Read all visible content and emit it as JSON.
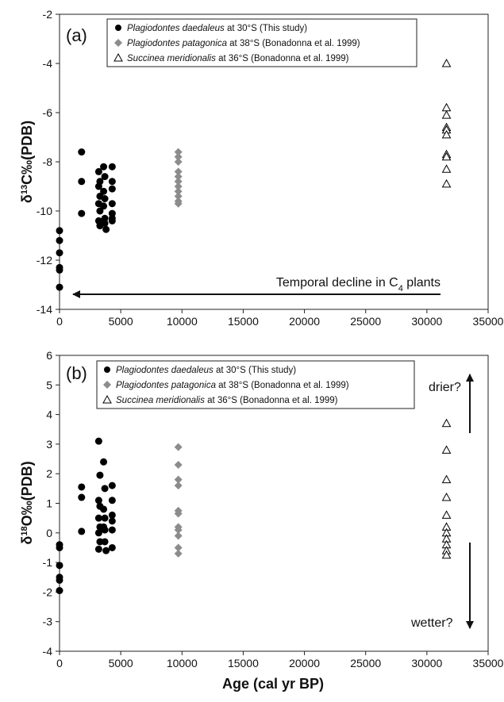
{
  "xlabel": "Age (cal yr BP)",
  "chart_data": [
    {
      "type": "scatter",
      "panel_label": "(a)",
      "ylabel_main": "δ",
      "ylabel_sup": "13",
      "ylabel_rest": "C‰(PDB)",
      "xlim": [
        0,
        35000
      ],
      "ylim": [
        -14,
        -2
      ],
      "x_ticks": [
        "0",
        "5000",
        "10000",
        "15000",
        "20000",
        "25000",
        "30000",
        "35000"
      ],
      "y_ticks": [
        "-14",
        "-12",
        "-10",
        "-8",
        "-6",
        "-4",
        "-2"
      ],
      "legend": [
        {
          "species": "Plagiodontes daedaleus",
          "detail": " at 30°S (This study)",
          "marker": "circle",
          "color": "#000000"
        },
        {
          "species": "Plagiodontes patagonica",
          "detail": " at 38°S (Bonadonna et al. 1999)",
          "marker": "diamond",
          "color": "#8c8c8c"
        },
        {
          "species": "Succinea meridionalis",
          "detail": " at 36°S (Bonadonna et al. 1999)",
          "marker": "triangle",
          "color": "#000000"
        }
      ],
      "series": [
        {
          "marker": "circle",
          "points": [
            [
              0,
              -10.8
            ],
            [
              0,
              -11.2
            ],
            [
              0,
              -11.7
            ],
            [
              0,
              -12.3
            ],
            [
              0,
              -12.4
            ],
            [
              0,
              -13.1
            ],
            [
              1800,
              -7.6
            ],
            [
              1800,
              -8.8
            ],
            [
              1800,
              -10.1
            ],
            [
              3200,
              -8.4
            ],
            [
              3300,
              -8.8
            ],
            [
              3200,
              -9.0
            ],
            [
              3300,
              -9.4
            ],
            [
              3200,
              -9.7
            ],
            [
              3300,
              -10.0
            ],
            [
              3200,
              -10.4
            ],
            [
              3300,
              -10.6
            ],
            [
              3600,
              -8.2
            ],
            [
              3700,
              -8.6
            ],
            [
              3600,
              -9.2
            ],
            [
              3700,
              -9.5
            ],
            [
              3600,
              -9.8
            ],
            [
              3700,
              -10.3
            ],
            [
              3700,
              -10.5
            ],
            [
              3800,
              -10.75
            ],
            [
              4300,
              -8.2
            ],
            [
              4300,
              -8.8
            ],
            [
              4300,
              -9.1
            ],
            [
              4300,
              -9.7
            ],
            [
              4300,
              -10.1
            ],
            [
              4300,
              -10.3
            ],
            [
              4300,
              -10.4
            ]
          ]
        },
        {
          "marker": "diamond",
          "points": [
            [
              9700,
              -7.6
            ],
            [
              9700,
              -7.8
            ],
            [
              9700,
              -8.0
            ],
            [
              9700,
              -8.4
            ],
            [
              9700,
              -8.6
            ],
            [
              9700,
              -8.8
            ],
            [
              9700,
              -9.0
            ],
            [
              9700,
              -9.2
            ],
            [
              9700,
              -9.4
            ],
            [
              9700,
              -9.6
            ],
            [
              9700,
              -9.7
            ]
          ]
        },
        {
          "marker": "triangle",
          "points": [
            [
              31600,
              -4.0
            ],
            [
              31600,
              -5.8
            ],
            [
              31600,
              -6.1
            ],
            [
              31600,
              -6.6
            ],
            [
              31600,
              -6.7
            ],
            [
              31600,
              -6.9
            ],
            [
              31600,
              -7.7
            ],
            [
              31600,
              -7.8
            ],
            [
              31600,
              -8.3
            ],
            [
              31600,
              -8.9
            ]
          ]
        }
      ],
      "annotation": {
        "text": "Temporal decline in C",
        "sub": "4",
        "text_end": " plants"
      }
    },
    {
      "type": "scatter",
      "panel_label": "(b)",
      "ylabel_main": "δ",
      "ylabel_sup": "18",
      "ylabel_rest": "O‰(PDB)",
      "xlim": [
        0,
        35000
      ],
      "ylim": [
        -4,
        6
      ],
      "x_ticks": [
        "0",
        "5000",
        "10000",
        "15000",
        "20000",
        "25000",
        "30000",
        "35000"
      ],
      "y_ticks": [
        "-4",
        "-3",
        "-2",
        "-1",
        "0",
        "1",
        "2",
        "3",
        "4",
        "5",
        "6"
      ],
      "legend": [
        {
          "species": "Plagiodontes daedaleus",
          "detail": " at 30°S (This study)",
          "marker": "circle",
          "color": "#000000"
        },
        {
          "species": "Plagiodontes patagonica",
          "detail": " at 38°S (Bonadonna et al. 1999)",
          "marker": "diamond",
          "color": "#8c8c8c"
        },
        {
          "species": "Succinea meridionalis",
          "detail": " at 36°S (Bonadonna et al. 1999)",
          "marker": "triangle",
          "color": "#000000"
        }
      ],
      "series": [
        {
          "marker": "circle",
          "points": [
            [
              0,
              -0.4
            ],
            [
              0,
              -0.5
            ],
            [
              0,
              -1.1
            ],
            [
              0,
              -1.5
            ],
            [
              0,
              -1.6
            ],
            [
              0,
              -1.95
            ],
            [
              1800,
              1.55
            ],
            [
              1800,
              1.2
            ],
            [
              1800,
              0.05
            ],
            [
              3200,
              3.1
            ],
            [
              3300,
              1.95
            ],
            [
              3200,
              1.1
            ],
            [
              3300,
              0.9
            ],
            [
              3200,
              0.5
            ],
            [
              3300,
              0.2
            ],
            [
              3200,
              0.0
            ],
            [
              3300,
              -0.3
            ],
            [
              3200,
              -0.55
            ],
            [
              3600,
              2.4
            ],
            [
              3700,
              1.5
            ],
            [
              3600,
              0.8
            ],
            [
              3700,
              0.5
            ],
            [
              3600,
              0.2
            ],
            [
              3700,
              0.1
            ],
            [
              3700,
              -0.3
            ],
            [
              3800,
              -0.6
            ],
            [
              4300,
              1.6
            ],
            [
              4300,
              1.1
            ],
            [
              4300,
              0.6
            ],
            [
              4300,
              0.4
            ],
            [
              4300,
              0.1
            ],
            [
              4300,
              -0.5
            ]
          ]
        },
        {
          "marker": "diamond",
          "points": [
            [
              9700,
              2.9
            ],
            [
              9700,
              2.3
            ],
            [
              9700,
              1.8
            ],
            [
              9700,
              1.6
            ],
            [
              9700,
              0.75
            ],
            [
              9700,
              0.65
            ],
            [
              9700,
              0.2
            ],
            [
              9700,
              0.1
            ],
            [
              9700,
              -0.1
            ],
            [
              9700,
              -0.5
            ],
            [
              9700,
              -0.7
            ]
          ]
        },
        {
          "marker": "triangle",
          "points": [
            [
              31600,
              3.7
            ],
            [
              31600,
              2.8
            ],
            [
              31600,
              1.8
            ],
            [
              31600,
              1.2
            ],
            [
              31600,
              0.6
            ],
            [
              31600,
              0.2
            ],
            [
              31600,
              0.0
            ],
            [
              31600,
              -0.2
            ],
            [
              31600,
              -0.4
            ],
            [
              31600,
              -0.6
            ],
            [
              31600,
              -0.75
            ]
          ]
        }
      ],
      "annotations": {
        "up": "drier?",
        "down": "wetter?"
      }
    }
  ]
}
